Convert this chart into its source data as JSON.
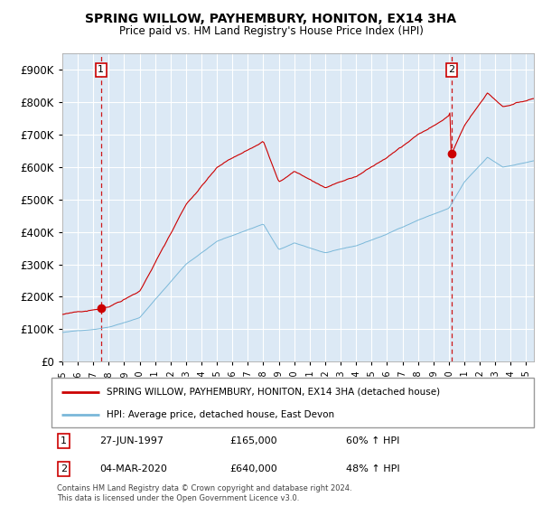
{
  "title": "SPRING WILLOW, PAYHEMBURY, HONITON, EX14 3HA",
  "subtitle": "Price paid vs. HM Land Registry's House Price Index (HPI)",
  "legend_line1": "SPRING WILLOW, PAYHEMBURY, HONITON, EX14 3HA (detached house)",
  "legend_line2": "HPI: Average price, detached house, East Devon",
  "transaction1_label": "1",
  "transaction1_date": "27-JUN-1997",
  "transaction1_price": "£165,000",
  "transaction1_hpi": "60% ↑ HPI",
  "transaction1_year": 1997.49,
  "transaction1_value": 165000,
  "transaction2_label": "2",
  "transaction2_date": "04-MAR-2020",
  "transaction2_price": "£640,000",
  "transaction2_hpi": "48% ↑ HPI",
  "transaction2_year": 2020.17,
  "transaction2_value": 640000,
  "footer": "Contains HM Land Registry data © Crown copyright and database right 2024.\nThis data is licensed under the Open Government Licence v3.0.",
  "hpi_color": "#7ab8d9",
  "price_color": "#cc0000",
  "plot_bg_color": "#dce9f5",
  "ylim": [
    0,
    950000
  ],
  "yticks": [
    0,
    100000,
    200000,
    300000,
    400000,
    500000,
    600000,
    700000,
    800000,
    900000
  ],
  "xlim_start": 1995,
  "xlim_end": 2025.5
}
